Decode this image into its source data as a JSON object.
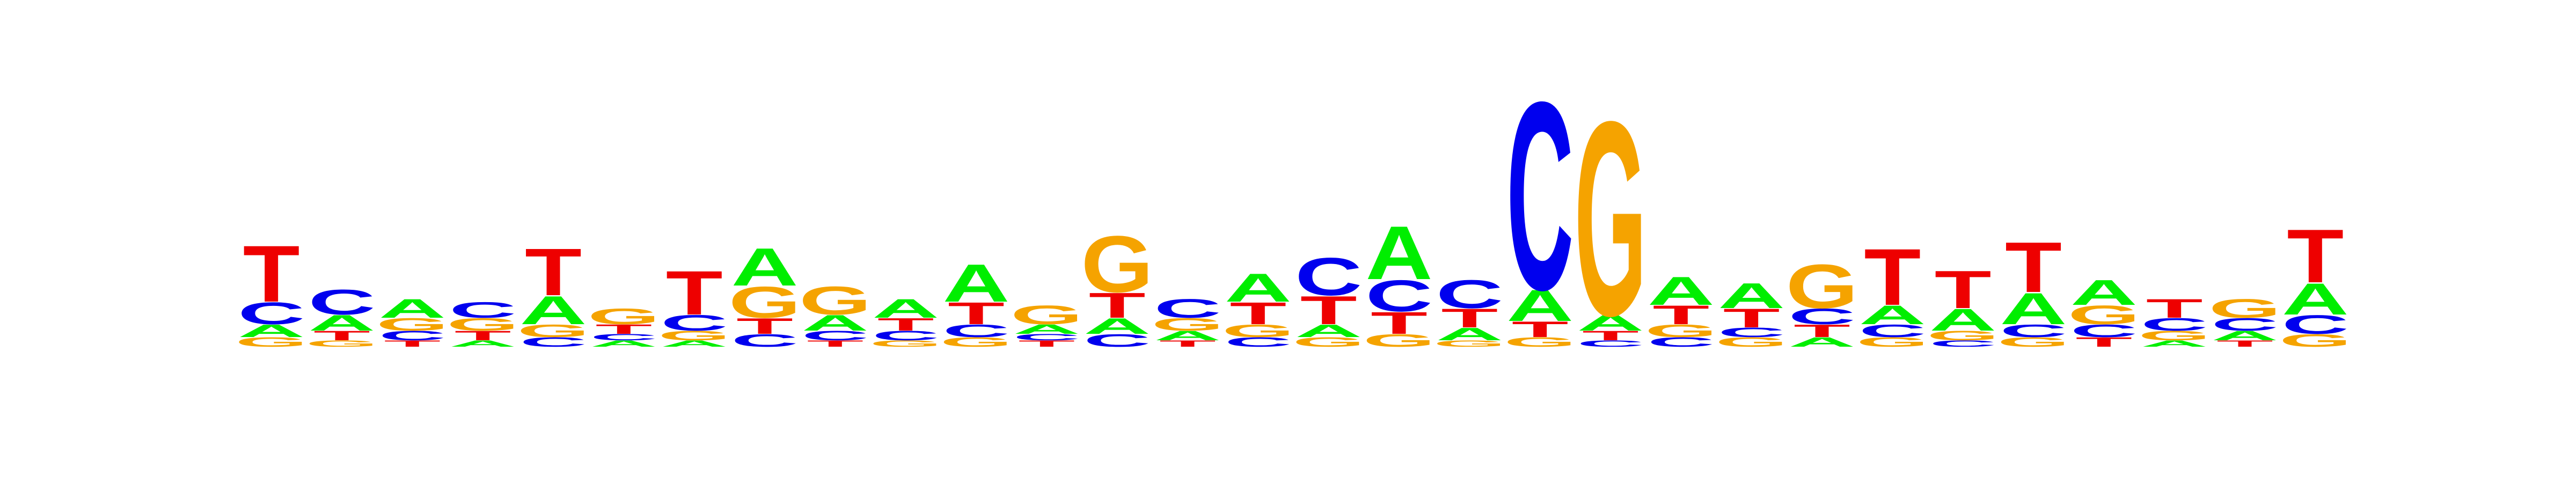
{
  "logo": {
    "columns": [
      [
        [
          "T",
          0.18
        ],
        [
          "C",
          0.07
        ],
        [
          "A",
          0.04
        ],
        [
          "G",
          0.03
        ]
      ],
      [
        [
          "C",
          0.08
        ],
        [
          "A",
          0.05
        ],
        [
          "T",
          0.03
        ],
        [
          "G",
          0.02
        ]
      ],
      [
        [
          "A",
          0.06
        ],
        [
          "G",
          0.04
        ],
        [
          "C",
          0.03
        ],
        [
          "T",
          0.02
        ]
      ],
      [
        [
          "C",
          0.05
        ],
        [
          "G",
          0.04
        ],
        [
          "T",
          0.03
        ],
        [
          "A",
          0.02
        ]
      ],
      [
        [
          "T",
          0.15
        ],
        [
          "A",
          0.09
        ],
        [
          "G",
          0.04
        ],
        [
          "C",
          0.03
        ]
      ],
      [
        [
          "G",
          0.05
        ],
        [
          "T",
          0.03
        ],
        [
          "A",
          0.02
        ],
        [
          "C",
          0.02
        ]
      ],
      [
        [
          "T",
          0.14
        ],
        [
          "C",
          0.05
        ],
        [
          "G",
          0.03
        ],
        [
          "A",
          0.02
        ]
      ],
      [
        [
          "A",
          0.12
        ],
        [
          "G",
          0.1
        ],
        [
          "T",
          0.05
        ],
        [
          "C",
          0.04
        ]
      ],
      [
        [
          "G",
          0.09
        ],
        [
          "A",
          0.05
        ],
        [
          "C",
          0.03
        ],
        [
          "T",
          0.02
        ]
      ],
      [
        [
          "A",
          0.06
        ],
        [
          "T",
          0.04
        ],
        [
          "C",
          0.03
        ],
        [
          "G",
          0.02
        ]
      ],
      [
        [
          "A",
          0.12
        ],
        [
          "T",
          0.07
        ],
        [
          "C",
          0.04
        ],
        [
          "G",
          0.03
        ]
      ],
      [
        [
          "G",
          0.06
        ],
        [
          "A",
          0.03
        ],
        [
          "T",
          0.02
        ],
        [
          "C",
          0.02
        ]
      ],
      [
        [
          "G",
          0.18
        ],
        [
          "T",
          0.08
        ],
        [
          "A",
          0.05
        ],
        [
          "C",
          0.04
        ]
      ],
      [
        [
          "C",
          0.06
        ],
        [
          "G",
          0.04
        ],
        [
          "A",
          0.03
        ],
        [
          "T",
          0.02
        ]
      ],
      [
        [
          "A",
          0.09
        ],
        [
          "T",
          0.07
        ],
        [
          "G",
          0.04
        ],
        [
          "C",
          0.03
        ]
      ],
      [
        [
          "C",
          0.12
        ],
        [
          "T",
          0.09
        ],
        [
          "A",
          0.04
        ],
        [
          "G",
          0.03
        ]
      ],
      [
        [
          "A",
          0.17
        ],
        [
          "C",
          0.1
        ],
        [
          "T",
          0.07
        ],
        [
          "G",
          0.04
        ]
      ],
      [
        [
          "C",
          0.09
        ],
        [
          "T",
          0.06
        ],
        [
          "A",
          0.04
        ],
        [
          "G",
          0.02
        ]
      ],
      [
        [
          "C",
          0.6
        ],
        [
          "A",
          0.1
        ],
        [
          "T",
          0.05
        ],
        [
          "G",
          0.03
        ]
      ],
      [
        [
          "G",
          0.62
        ],
        [
          "A",
          0.05
        ],
        [
          "T",
          0.03
        ],
        [
          "C",
          0.02
        ]
      ],
      [
        [
          "A",
          0.09
        ],
        [
          "T",
          0.06
        ],
        [
          "G",
          0.04
        ],
        [
          "C",
          0.03
        ]
      ],
      [
        [
          "A",
          0.08
        ],
        [
          "T",
          0.06
        ],
        [
          "G",
          0.03
        ],
        [
          "C",
          0.03
        ]
      ],
      [
        [
          "G",
          0.14
        ],
        [
          "C",
          0.05
        ],
        [
          "T",
          0.04
        ],
        [
          "A",
          0.03
        ]
      ],
      [
        [
          "T",
          0.18
        ],
        [
          "A",
          0.06
        ],
        [
          "C",
          0.04
        ],
        [
          "G",
          0.03
        ]
      ],
      [
        [
          "T",
          0.12
        ],
        [
          "A",
          0.07
        ],
        [
          "G",
          0.03
        ],
        [
          "C",
          0.02
        ]
      ],
      [
        [
          "T",
          0.16
        ],
        [
          "A",
          0.1
        ],
        [
          "C",
          0.04
        ],
        [
          "G",
          0.03
        ]
      ],
      [
        [
          "A",
          0.08
        ],
        [
          "G",
          0.06
        ],
        [
          "C",
          0.04
        ],
        [
          "T",
          0.03
        ]
      ],
      [
        [
          "T",
          0.06
        ],
        [
          "C",
          0.04
        ],
        [
          "G",
          0.03
        ],
        [
          "A",
          0.02
        ]
      ],
      [
        [
          "G",
          0.06
        ],
        [
          "C",
          0.04
        ],
        [
          "A",
          0.03
        ],
        [
          "T",
          0.02
        ]
      ],
      [
        [
          "T",
          0.17
        ],
        [
          "A",
          0.1
        ],
        [
          "C",
          0.06
        ],
        [
          "G",
          0.04
        ]
      ]
    ],
    "colors": {
      "A": "#00ee00",
      "C": "#0000ee",
      "G": "#f5a300",
      "T": "#ee0000"
    }
  }
}
